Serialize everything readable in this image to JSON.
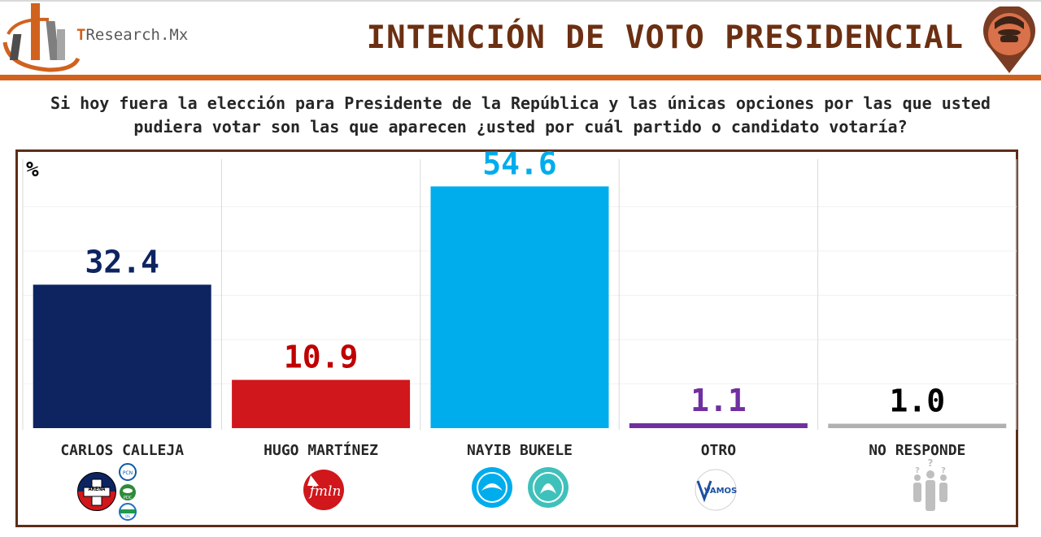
{
  "header": {
    "logo_text_prefix": "T",
    "logo_text_rest": "Research.Mx",
    "title": "INTENCIÓN DE VOTO PRESIDENCIAL"
  },
  "question": "Si hoy fuera la elección para Presidente de la República y las únicas opciones por las que usted pudiera votar son las que aparecen ¿usted por cuál partido o candidato votaría?",
  "chart_data": {
    "type": "bar",
    "ylabel": "%",
    "ylim": [
      0,
      60
    ],
    "categories": [
      "CARLOS CALLEJA",
      "HUGO MARTÍNEZ",
      "NAYIB BUKELE",
      "OTRO",
      "NO RESPONDE"
    ],
    "values": [
      32.4,
      10.9,
      54.6,
      1.1,
      1.0
    ],
    "value_labels": [
      "32.4",
      "10.9",
      "54.6",
      "1.1",
      "1.0"
    ],
    "colors": [
      "#0d2461",
      "#d0171c",
      "#00adec",
      "#7030a0",
      "#b0b0b0"
    ],
    "label_colors": [
      "#0d2461",
      "#c00000",
      "#00adec",
      "#7030a0",
      "#000000"
    ],
    "grid": true
  },
  "party_logos": {
    "calleja": [
      "ARENA",
      "PCN",
      "PDC",
      "DS"
    ],
    "martinez": [
      "fmln"
    ],
    "bukele": [
      "GANA",
      "NUEVAS IDEAS"
    ],
    "otro": [
      "VAMOS"
    ],
    "no_responde": [
      "people-question-icon"
    ]
  },
  "colors": {
    "title": "#6b2f12",
    "accent": "#d1621e",
    "frame": "#5c2d18"
  }
}
